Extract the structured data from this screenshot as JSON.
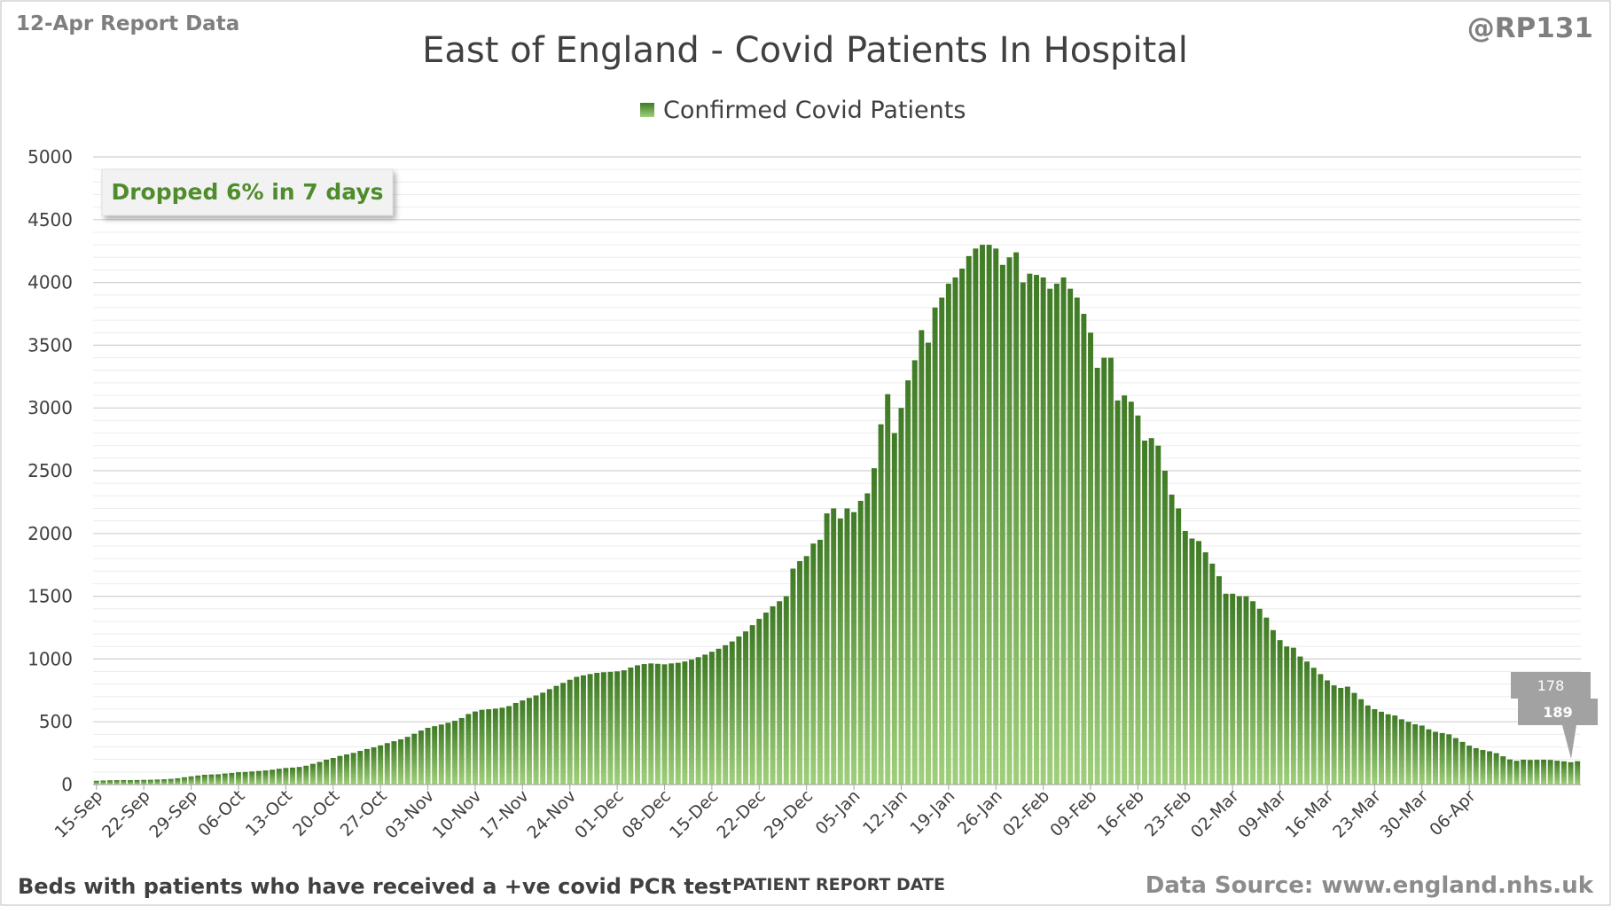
{
  "header": {
    "report_label": "12-Apr Report Data",
    "handle": "@RP131"
  },
  "footer": {
    "note": "Beds with patients who have received a +ve covid PCR test",
    "source": "Data Source: www.england.nhs.uk"
  },
  "annotation": {
    "text": "Dropped 6% in 7 days",
    "callout_top": "178",
    "callout_bottom": "189"
  },
  "colors": {
    "bar_top": "#3f7a24",
    "bar_bottom": "#9fcf7a",
    "annotation_text": "#4e8c2c",
    "title_text": "#404040",
    "callout_fill": "#9a9a9a",
    "gridline": "#d9d9d9"
  },
  "chart_data": {
    "type": "bar",
    "title": "East of England - Covid Patients In Hospital",
    "xlabel": "PATIENT REPORT DATE",
    "ylabel": "",
    "ylim": [
      0,
      5000
    ],
    "yticks": [
      0,
      500,
      1000,
      1500,
      2000,
      2500,
      3000,
      3500,
      4000,
      4500,
      5000
    ],
    "grid": true,
    "legend_position": "top-center",
    "x_tick_labels": [
      "15-Sep",
      "22-Sep",
      "29-Sep",
      "06-Oct",
      "13-Oct",
      "20-Oct",
      "27-Oct",
      "03-Nov",
      "10-Nov",
      "17-Nov",
      "24-Nov",
      "01-Dec",
      "08-Dec",
      "15-Dec",
      "22-Dec",
      "29-Dec",
      "05-Jan",
      "12-Jan",
      "19-Jan",
      "26-Jan",
      "02-Feb",
      "09-Feb",
      "16-Feb",
      "23-Feb",
      "02-Mar",
      "09-Mar",
      "16-Mar",
      "23-Mar",
      "30-Mar",
      "06-Apr"
    ],
    "series": [
      {
        "name": "Confirmed Covid Patients",
        "start_date": "15-Sep",
        "values": [
          30,
          32,
          34,
          35,
          36,
          35,
          36,
          37,
          38,
          40,
          42,
          45,
          50,
          58,
          65,
          72,
          78,
          80,
          82,
          88,
          92,
          98,
          100,
          104,
          108,
          112,
          118,
          126,
          132,
          135,
          140,
          150,
          165,
          180,
          198,
          212,
          228,
          240,
          252,
          268,
          283,
          296,
          312,
          330,
          345,
          360,
          380,
          405,
          430,
          452,
          465,
          478,
          492,
          508,
          530,
          562,
          582,
          595,
          600,
          605,
          612,
          625,
          650,
          670,
          690,
          710,
          732,
          760,
          786,
          810,
          835,
          858,
          870,
          880,
          890,
          895,
          898,
          902,
          910,
          932,
          950,
          960,
          965,
          962,
          958,
          965,
          970,
          980,
          995,
          1015,
          1035,
          1058,
          1082,
          1110,
          1140,
          1180,
          1220,
          1270,
          1320,
          1370,
          1420,
          1460,
          1500,
          1720,
          1780,
          1820,
          1920,
          1950,
          2160,
          2200,
          2120,
          2200,
          2170,
          2260,
          2320,
          2520,
          2870,
          3110,
          2800,
          3000,
          3220,
          3380,
          3620,
          3520,
          3800,
          3880,
          3990,
          4040,
          4110,
          4210,
          4270,
          4300,
          4300,
          4270,
          4140,
          4200,
          4240,
          4000,
          4070,
          4060,
          4040,
          3950,
          3990,
          4040,
          3950,
          3880,
          3750,
          3600,
          3320,
          3400,
          3400,
          3060,
          3100,
          3050,
          2940,
          2740,
          2760,
          2700,
          2500,
          2310,
          2200,
          2020,
          1960,
          1940,
          1850,
          1760,
          1660,
          1520,
          1520,
          1500,
          1500,
          1460,
          1400,
          1330,
          1230,
          1150,
          1100,
          1090,
          1020,
          980,
          930,
          880,
          830,
          790,
          770,
          780,
          730,
          680,
          630,
          600,
          580,
          560,
          550,
          520,
          500,
          480,
          470,
          440,
          420,
          410,
          400,
          370,
          340,
          310,
          290,
          275,
          265,
          250,
          225,
          200,
          189,
          198,
          196,
          197,
          198,
          196,
          190,
          185,
          178,
          186
        ]
      }
    ]
  }
}
